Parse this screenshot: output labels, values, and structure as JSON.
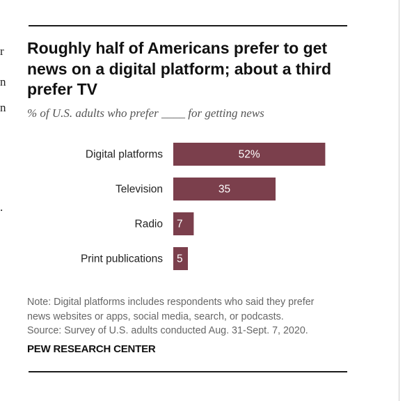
{
  "title": "Roughly half of Americans prefer to get news on a digital platform; about a third prefer TV",
  "subtitle": "% of U.S. adults who prefer ____ for getting news",
  "note_lines": [
    "Note: Digital platforms includes respondents who said they prefer",
    "news websites or apps, social media, search, or podcasts.",
    "Source: Survey of U.S. adults conducted Aug. 31-Sept. 7, 2020."
  ],
  "brand": "PEW RESEARCH CENTER",
  "left_bleed": [
    "r",
    "n",
    "n",
    "."
  ],
  "colors": {
    "bar": "#7b3f4c",
    "bar_label": "#ffffff",
    "category_label": "#222222"
  },
  "chart_data": {
    "type": "bar",
    "orientation": "horizontal",
    "categories": [
      "Digital platforms",
      "Television",
      "Radio",
      "Print publications"
    ],
    "values": [
      52,
      35,
      7,
      5
    ],
    "value_labels": [
      "52%",
      "35",
      "7",
      "5"
    ],
    "xlim": [
      0,
      100
    ],
    "grid": false,
    "legend": "none"
  }
}
